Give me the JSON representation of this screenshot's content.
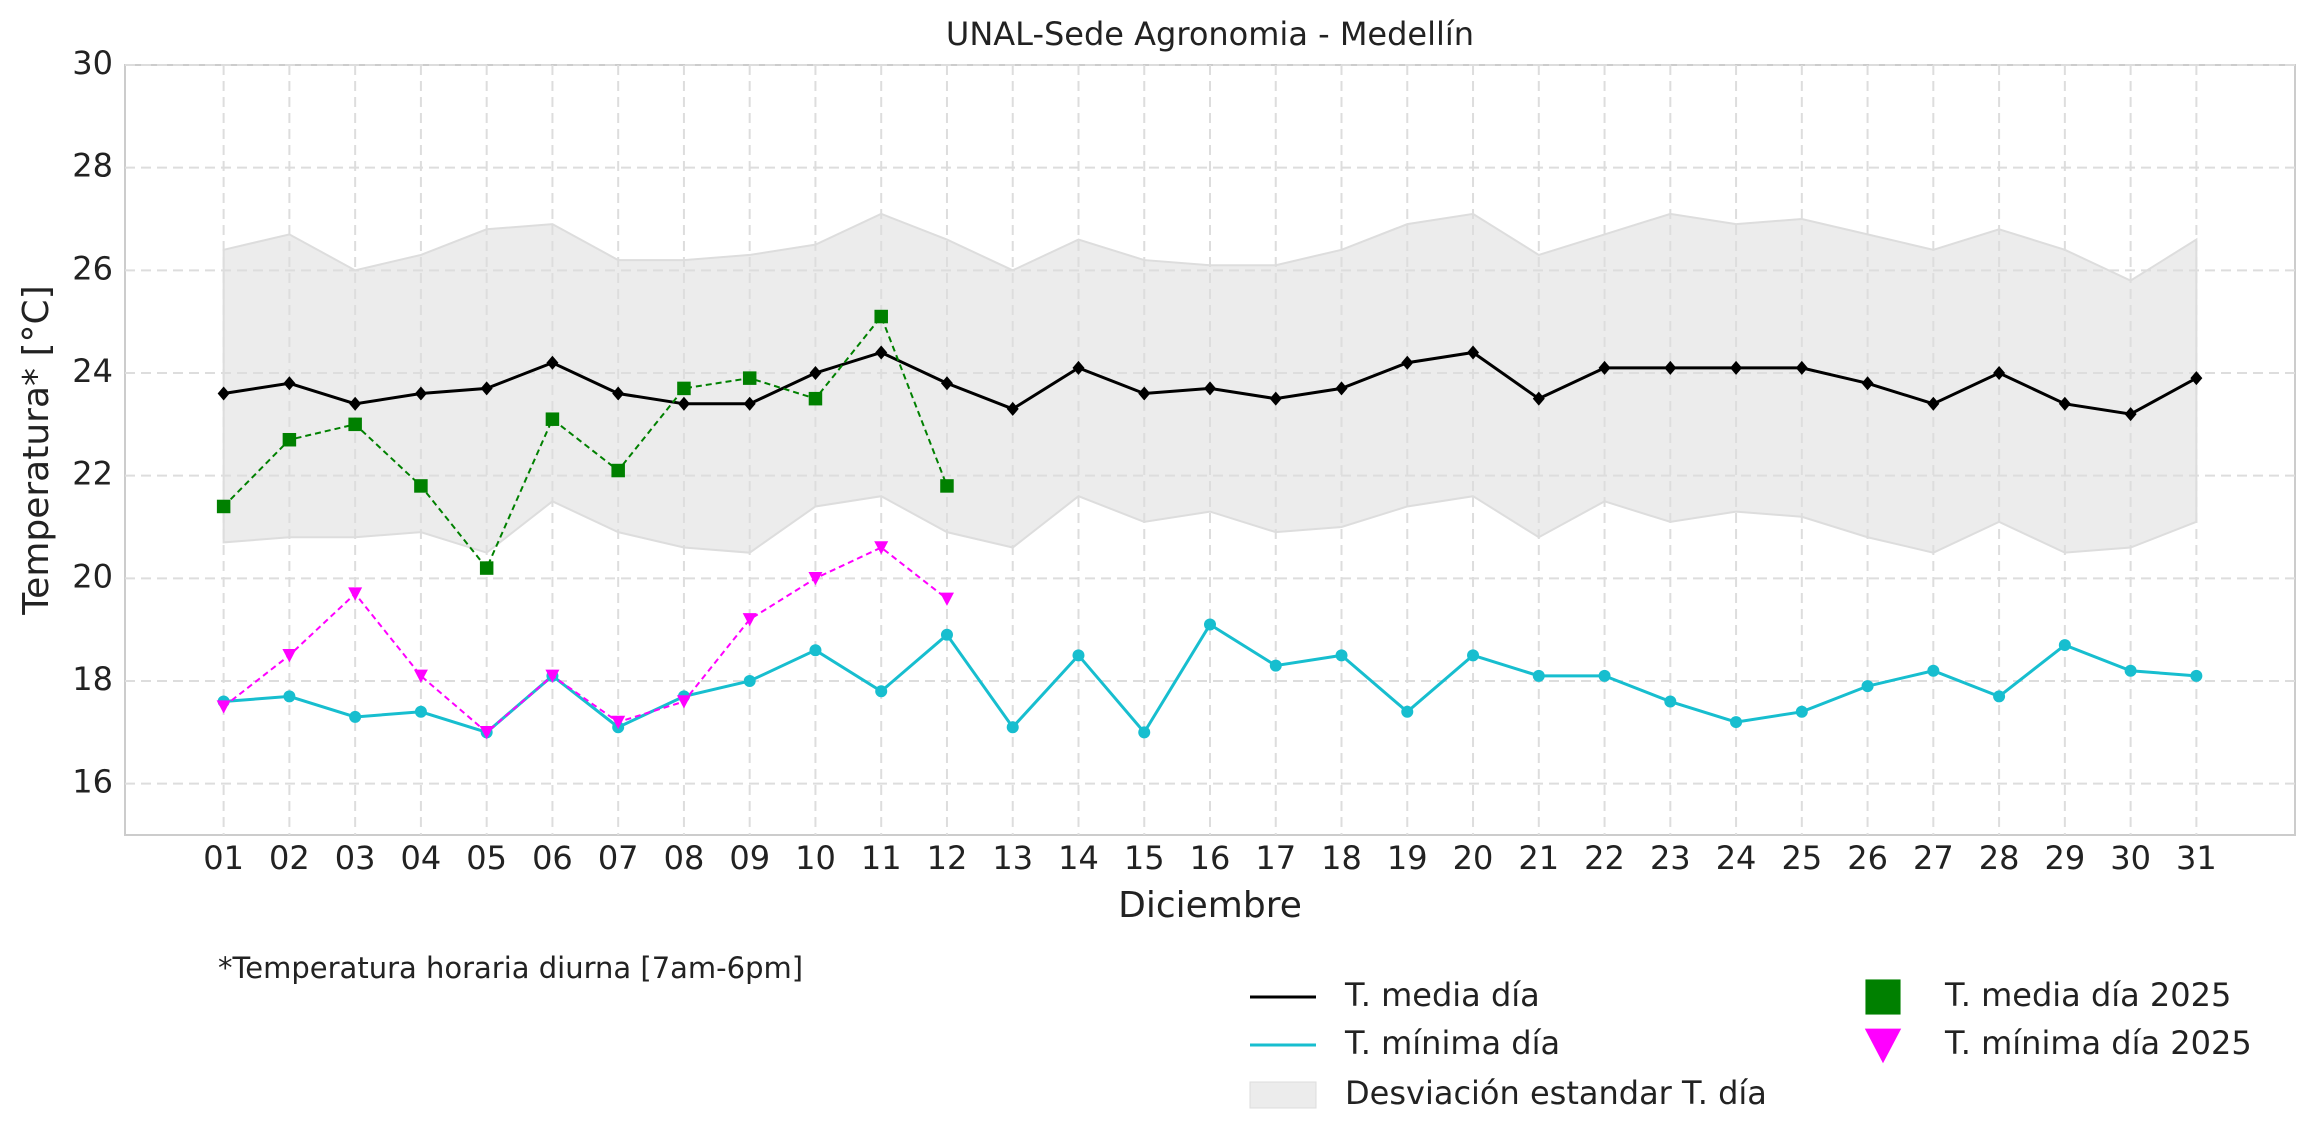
{
  "chart_data": {
    "type": "line",
    "title": "UNAL-Sede Agronomia - Medellín",
    "xlabel": "Diciembre",
    "ylabel": "Temperatura* [°C]",
    "note": "*Temperatura horaria diurna [7am-6pm]",
    "categories": [
      "01",
      "02",
      "03",
      "04",
      "05",
      "06",
      "07",
      "08",
      "09",
      "10",
      "11",
      "12",
      "13",
      "14",
      "15",
      "16",
      "17",
      "18",
      "19",
      "20",
      "21",
      "22",
      "23",
      "24",
      "25",
      "26",
      "27",
      "28",
      "29",
      "30",
      "31"
    ],
    "ylim": [
      15,
      30
    ],
    "yticks": [
      16,
      18,
      20,
      22,
      24,
      26,
      28,
      30
    ],
    "grid": true,
    "band": {
      "name": "Desviación estandar T. día",
      "color": "#ececec",
      "upper": [
        26.4,
        26.7,
        26.0,
        26.3,
        26.8,
        26.9,
        26.2,
        26.2,
        26.3,
        26.5,
        27.1,
        26.6,
        26.0,
        26.6,
        26.2,
        26.1,
        26.1,
        26.4,
        26.9,
        27.1,
        26.3,
        26.7,
        27.1,
        26.9,
        27.0,
        26.7,
        26.4,
        26.8,
        26.4,
        25.8,
        26.6
      ],
      "lower": [
        20.7,
        20.8,
        20.8,
        20.9,
        20.5,
        21.5,
        20.9,
        20.6,
        20.5,
        21.4,
        21.6,
        20.9,
        20.6,
        21.6,
        21.1,
        21.3,
        20.9,
        21.0,
        21.4,
        21.6,
        20.8,
        21.5,
        21.1,
        21.3,
        21.2,
        20.8,
        20.5,
        21.1,
        20.5,
        20.6,
        21.1
      ]
    },
    "series": [
      {
        "name": "T. media día",
        "color": "#000000",
        "marker": "diamond",
        "dashed": false,
        "values": [
          23.6,
          23.8,
          23.4,
          23.6,
          23.7,
          24.2,
          23.6,
          23.4,
          23.4,
          24.0,
          24.4,
          23.8,
          23.3,
          24.1,
          23.6,
          23.7,
          23.5,
          23.7,
          24.2,
          24.4,
          23.5,
          24.1,
          24.1,
          24.1,
          24.1,
          23.8,
          23.4,
          24.0,
          23.4,
          23.2,
          23.9
        ]
      },
      {
        "name": "T. mínima día",
        "color": "#17becf",
        "marker": "circle",
        "dashed": false,
        "values": [
          17.6,
          17.7,
          17.3,
          17.4,
          17.0,
          18.1,
          17.1,
          17.7,
          18.0,
          18.6,
          17.8,
          18.9,
          17.1,
          18.5,
          17.0,
          19.1,
          18.3,
          18.5,
          17.4,
          18.5,
          18.1,
          18.1,
          17.6,
          17.2,
          17.4,
          17.9,
          18.2,
          17.7,
          18.7,
          18.2,
          18.1
        ]
      },
      {
        "name": "T. media día 2025",
        "color": "#008000",
        "marker": "square",
        "dashed": true,
        "values": [
          21.4,
          22.7,
          23.0,
          21.8,
          20.2,
          23.1,
          22.1,
          23.7,
          23.9,
          23.5,
          25.1,
          21.8,
          null,
          null,
          null,
          null,
          null,
          null,
          null,
          null,
          null,
          null,
          null,
          null,
          null,
          null,
          null,
          null,
          null,
          null,
          null
        ]
      },
      {
        "name": "T. mínima día 2025",
        "color": "#ff00ff",
        "marker": "triangle",
        "dashed": true,
        "values": [
          17.5,
          18.5,
          19.7,
          18.1,
          17.0,
          18.1,
          17.2,
          17.6,
          19.2,
          20.0,
          20.6,
          19.6,
          null,
          null,
          null,
          null,
          null,
          null,
          null,
          null,
          null,
          null,
          null,
          null,
          null,
          null,
          null,
          null,
          null,
          null,
          null
        ]
      }
    ]
  }
}
